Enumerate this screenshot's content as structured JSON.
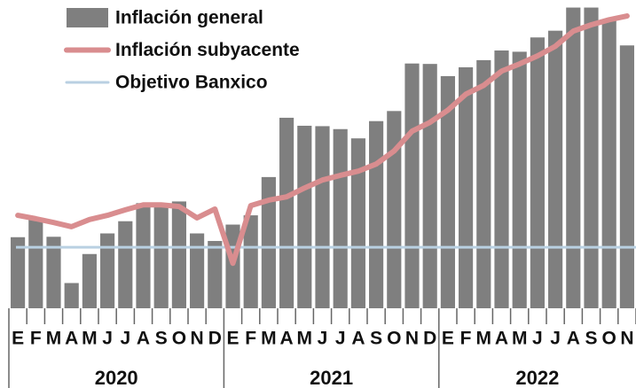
{
  "chart_data": {
    "type": "bar_line",
    "categories": [
      "E",
      "F",
      "M",
      "A",
      "M",
      "J",
      "J",
      "A",
      "S",
      "O",
      "N",
      "D",
      "E",
      "F",
      "M",
      "A",
      "M",
      "J",
      "J",
      "A",
      "S",
      "O",
      "N",
      "D",
      "E",
      "F",
      "M",
      "A",
      "M",
      "J",
      "J",
      "A",
      "S",
      "O",
      "N"
    ],
    "x_groups": [
      "2020",
      "2021",
      "2022"
    ],
    "ylim": [
      1.55,
      8.88
    ],
    "series": [
      {
        "name": "Inflación general",
        "type": "bar",
        "color": "#7f7f7f",
        "values": [
          3.24,
          3.7,
          3.25,
          2.15,
          2.84,
          3.33,
          3.62,
          4.05,
          4.01,
          4.09,
          3.33,
          3.15,
          3.54,
          3.76,
          4.67,
          6.08,
          5.89,
          5.88,
          5.81,
          5.59,
          6.0,
          6.24,
          7.37,
          7.36,
          7.07,
          7.28,
          7.45,
          7.68,
          7.65,
          7.99,
          8.15,
          8.7,
          8.7,
          8.41,
          7.8
        ]
      },
      {
        "name": "Inflación subyacente",
        "type": "line",
        "color": "#d98d8f",
        "values": [
          3.76,
          3.68,
          3.59,
          3.49,
          3.66,
          3.76,
          3.89,
          4.01,
          4.01,
          3.97,
          3.7,
          3.91,
          2.62,
          3.99,
          4.12,
          4.2,
          4.41,
          4.6,
          4.71,
          4.81,
          4.98,
          5.29,
          5.76,
          5.97,
          6.26,
          6.64,
          6.85,
          7.19,
          7.36,
          7.55,
          7.78,
          8.14,
          8.29,
          8.41,
          8.5
        ]
      },
      {
        "name": "Objetivo Banxico",
        "type": "hline",
        "color": "#b9d0e2",
        "value": 3
      }
    ]
  }
}
